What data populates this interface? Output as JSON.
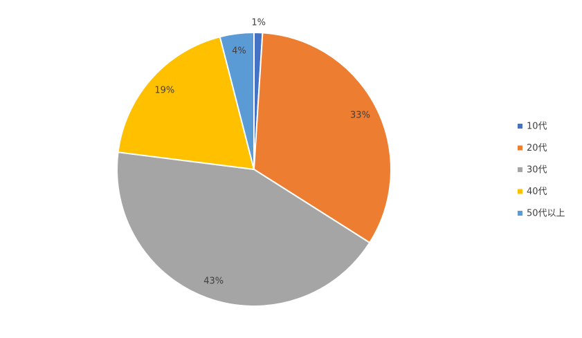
{
  "chart_data": {
    "type": "pie",
    "categories": [
      "10代",
      "20代",
      "30代",
      "40代",
      "50代以上"
    ],
    "values": [
      1,
      33,
      43,
      19,
      4
    ],
    "value_labels": [
      "1%",
      "33%",
      "43%",
      "19%",
      "4%"
    ],
    "colors": [
      "#4472c4",
      "#ed7d31",
      "#a5a5a5",
      "#ffc000",
      "#5b9bd5"
    ],
    "legend": "right"
  }
}
